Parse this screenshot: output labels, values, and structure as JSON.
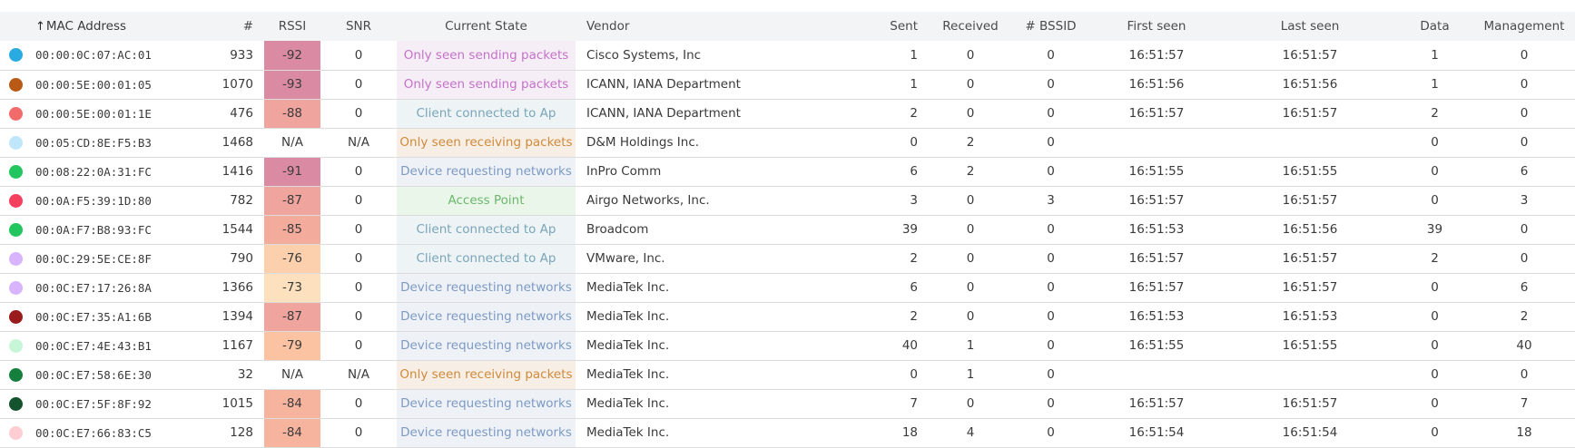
{
  "columns": {
    "mac": "MAC Address",
    "num": "#",
    "rssi": "RSSI",
    "snr": "SNR",
    "state": "Current State",
    "vendor": "Vendor",
    "sent": "Sent",
    "received": "Received",
    "bssid": "# BSSID",
    "first_seen": "First seen",
    "last_seen": "Last seen",
    "data": "Data",
    "management": "Management"
  },
  "sort": {
    "column": "mac",
    "icon": "arrow-up-icon",
    "glyph": "↑"
  },
  "state_styles": {
    "Only seen sending packets": {
      "bg": "#f6eef7",
      "fg": "#c571c9"
    },
    "Client connected to Ap": {
      "bg": "#eef3f6",
      "fg": "#7aa6b8"
    },
    "Only seen receiving packets": {
      "bg": "#f7eee5",
      "fg": "#cf8a3a"
    },
    "Device requesting networks": {
      "bg": "#eef1f6",
      "fg": "#7c9ac4"
    },
    "Access Point": {
      "bg": "#eaf6ea",
      "fg": "#6ab86a"
    }
  },
  "rows": [
    {
      "dot": "#29abe2",
      "mac": "00:00:0C:07:AC:01",
      "num": "933",
      "rssi": "-92",
      "rssi_bg": "#da8ba3",
      "snr": "0",
      "state": "Only seen sending packets",
      "vendor": "Cisco Systems, Inc",
      "sent": "1",
      "received": "0",
      "bssid": "0",
      "first_seen": "16:51:57",
      "last_seen": "16:51:57",
      "data": "1",
      "management": "0"
    },
    {
      "dot": "#b85a16",
      "mac": "00:00:5E:00:01:05",
      "num": "1070",
      "rssi": "-93",
      "rssi_bg": "#da8ba3",
      "snr": "0",
      "state": "Only seen sending packets",
      "vendor": "ICANN, IANA Department",
      "sent": "1",
      "received": "0",
      "bssid": "0",
      "first_seen": "16:51:56",
      "last_seen": "16:51:56",
      "data": "1",
      "management": "0"
    },
    {
      "dot": "#f26b6b",
      "mac": "00:00:5E:00:01:1E",
      "num": "476",
      "rssi": "-88",
      "rssi_bg": "#f0a49e",
      "snr": "0",
      "state": "Client connected to Ap",
      "vendor": "ICANN, IANA Department",
      "sent": "2",
      "received": "0",
      "bssid": "0",
      "first_seen": "16:51:57",
      "last_seen": "16:51:57",
      "data": "2",
      "management": "0"
    },
    {
      "dot": "#bfe6fb",
      "mac": "00:05:CD:8E:F5:B3",
      "num": "1468",
      "rssi": "N/A",
      "rssi_bg": "",
      "snr": "N/A",
      "state": "Only seen receiving packets",
      "vendor": "D&M Holdings Inc.",
      "sent": "0",
      "received": "2",
      "bssid": "0",
      "first_seen": "",
      "last_seen": "",
      "data": "0",
      "management": "0"
    },
    {
      "dot": "#22c55e",
      "mac": "00:08:22:0A:31:FC",
      "num": "1416",
      "rssi": "-91",
      "rssi_bg": "#da8ba3",
      "snr": "0",
      "state": "Device requesting networks",
      "vendor": "InPro Comm",
      "sent": "6",
      "received": "2",
      "bssid": "0",
      "first_seen": "16:51:55",
      "last_seen": "16:51:55",
      "data": "0",
      "management": "6"
    },
    {
      "dot": "#f43f5e",
      "mac": "00:0A:F5:39:1D:80",
      "num": "782",
      "rssi": "-87",
      "rssi_bg": "#f0a49e",
      "snr": "0",
      "state": "Access Point",
      "vendor": "Airgo Networks, Inc.",
      "sent": "3",
      "received": "0",
      "bssid": "3",
      "first_seen": "16:51:57",
      "last_seen": "16:51:57",
      "data": "0",
      "management": "3"
    },
    {
      "dot": "#22c55e",
      "mac": "00:0A:F7:B8:93:FC",
      "num": "1544",
      "rssi": "-85",
      "rssi_bg": "#f3ab9c",
      "snr": "0",
      "state": "Client connected to Ap",
      "vendor": "Broadcom",
      "sent": "39",
      "received": "0",
      "bssid": "0",
      "first_seen": "16:51:53",
      "last_seen": "16:51:56",
      "data": "39",
      "management": "0"
    },
    {
      "dot": "#d8b4fe",
      "mac": "00:0C:29:5E:CE:8F",
      "num": "790",
      "rssi": "-76",
      "rssi_bg": "#fdd0ad",
      "snr": "0",
      "state": "Client connected to Ap",
      "vendor": "VMware, Inc.",
      "sent": "2",
      "received": "0",
      "bssid": "0",
      "first_seen": "16:51:57",
      "last_seen": "16:51:57",
      "data": "2",
      "management": "0"
    },
    {
      "dot": "#d8b4fe",
      "mac": "00:0C:E7:17:26:8A",
      "num": "1366",
      "rssi": "-73",
      "rssi_bg": "#fde0bd",
      "snr": "0",
      "state": "Device requesting networks",
      "vendor": "MediaTek Inc.",
      "sent": "6",
      "received": "0",
      "bssid": "0",
      "first_seen": "16:51:57",
      "last_seen": "16:51:57",
      "data": "0",
      "management": "6"
    },
    {
      "dot": "#991b1b",
      "mac": "00:0C:E7:35:A1:6B",
      "num": "1394",
      "rssi": "-87",
      "rssi_bg": "#f0a49e",
      "snr": "0",
      "state": "Device requesting networks",
      "vendor": "MediaTek Inc.",
      "sent": "2",
      "received": "0",
      "bssid": "0",
      "first_seen": "16:51:53",
      "last_seen": "16:51:53",
      "data": "0",
      "management": "2"
    },
    {
      "dot": "#c6f6d5",
      "mac": "00:0C:E7:4E:43:B1",
      "num": "1167",
      "rssi": "-79",
      "rssi_bg": "#fcc3a3",
      "snr": "0",
      "state": "Device requesting networks",
      "vendor": "MediaTek Inc.",
      "sent": "40",
      "received": "1",
      "bssid": "0",
      "first_seen": "16:51:55",
      "last_seen": "16:51:55",
      "data": "0",
      "management": "40"
    },
    {
      "dot": "#15803d",
      "mac": "00:0C:E7:58:6E:30",
      "num": "32",
      "rssi": "N/A",
      "rssi_bg": "",
      "snr": "N/A",
      "state": "Only seen receiving packets",
      "vendor": "MediaTek Inc.",
      "sent": "0",
      "received": "1",
      "bssid": "0",
      "first_seen": "",
      "last_seen": "",
      "data": "0",
      "management": "0"
    },
    {
      "dot": "#14532d",
      "mac": "00:0C:E7:5F:8F:92",
      "num": "1015",
      "rssi": "-84",
      "rssi_bg": "#f6b49e",
      "snr": "0",
      "state": "Device requesting networks",
      "vendor": "MediaTek Inc.",
      "sent": "7",
      "received": "0",
      "bssid": "0",
      "first_seen": "16:51:57",
      "last_seen": "16:51:57",
      "data": "0",
      "management": "7"
    },
    {
      "dot": "#fecdd3",
      "mac": "00:0C:E7:66:83:C5",
      "num": "128",
      "rssi": "-84",
      "rssi_bg": "#f6b49e",
      "snr": "0",
      "state": "Device requesting networks",
      "vendor": "MediaTek Inc.",
      "sent": "18",
      "received": "4",
      "bssid": "0",
      "first_seen": "16:51:54",
      "last_seen": "16:51:54",
      "data": "0",
      "management": "18"
    }
  ]
}
